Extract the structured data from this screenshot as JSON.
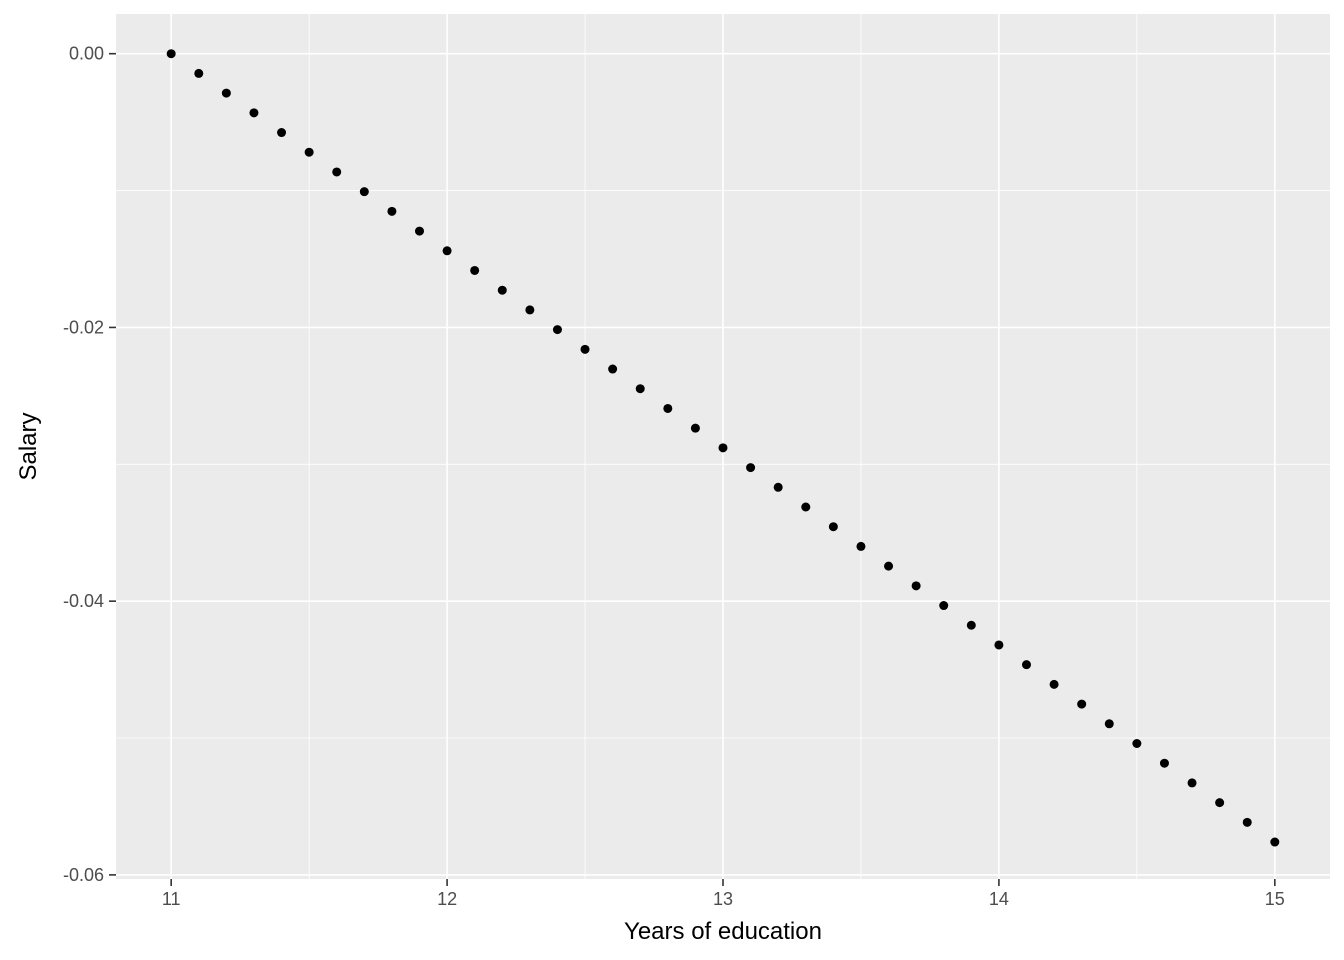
{
  "chart_data": {
    "type": "scatter",
    "title": "",
    "xlabel": "Years of education",
    "ylabel": "Salary",
    "xlim": [
      10.8,
      15.2
    ],
    "ylim": [
      -0.0603,
      0.0029
    ],
    "x_ticks": [
      11,
      12,
      13,
      14,
      15
    ],
    "x_tick_labels": [
      "11",
      "12",
      "13",
      "14",
      "15"
    ],
    "y_ticks": [
      0,
      -0.02,
      -0.04,
      -0.06
    ],
    "y_tick_labels": [
      "0.00",
      "-0.02",
      "-0.04",
      "-0.06"
    ],
    "x_minor_ticks": [
      11.5,
      12.5,
      13.5,
      14.5
    ],
    "y_minor_ticks": [
      -0.01,
      -0.03,
      -0.05
    ],
    "grid": true,
    "legend": "none",
    "colors": {
      "panel": "#ebebeb",
      "grid": "#ffffff",
      "point": "#000000"
    },
    "x": [
      11.0,
      11.1,
      11.2,
      11.3,
      11.4,
      11.5,
      11.6,
      11.7,
      11.8,
      11.9,
      12.0,
      12.1,
      12.2,
      12.3,
      12.4,
      12.5,
      12.6,
      12.7,
      12.8,
      12.9,
      13.0,
      13.1,
      13.2,
      13.3,
      13.4,
      13.5,
      13.6,
      13.7,
      13.8,
      13.9,
      14.0,
      14.1,
      14.2,
      14.3,
      14.4,
      14.5,
      14.6,
      14.7,
      14.8,
      14.9,
      15.0
    ],
    "y": [
      0.0,
      -0.00144,
      -0.00288,
      -0.00432,
      -0.00576,
      -0.0072,
      -0.00864,
      -0.01008,
      -0.01152,
      -0.01296,
      -0.0144,
      -0.01584,
      -0.01728,
      -0.01872,
      -0.02016,
      -0.0216,
      -0.02304,
      -0.02448,
      -0.02592,
      -0.02736,
      -0.0288,
      -0.03024,
      -0.03168,
      -0.03312,
      -0.03456,
      -0.036,
      -0.03744,
      -0.03888,
      -0.04032,
      -0.04176,
      -0.0432,
      -0.04464,
      -0.04608,
      -0.04752,
      -0.04896,
      -0.0504,
      -0.05184,
      -0.05328,
      -0.05472,
      -0.05616,
      -0.0576
    ]
  }
}
